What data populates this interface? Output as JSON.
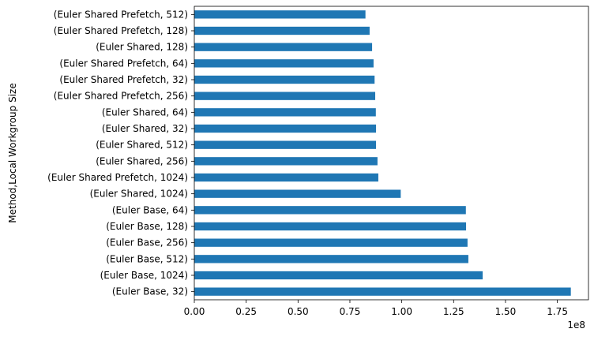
{
  "chart_data": {
    "type": "bar",
    "orientation": "horizontal",
    "ylabel": "Method,Local Workgroup Size",
    "xlabel": "",
    "x_offset_label": "1e8",
    "xlim": [
      0,
      190000000
    ],
    "xticks": [
      0,
      25000000,
      50000000,
      75000000,
      100000000,
      125000000,
      150000000,
      175000000
    ],
    "xtick_labels": [
      "0.00",
      "0.25",
      "0.50",
      "0.75",
      "1.00",
      "1.25",
      "1.50",
      "1.75"
    ],
    "grid": false,
    "bar_color": "#1f77b4",
    "categories": [
      "(Euler Shared Prefetch, 512)",
      "(Euler Shared Prefetch, 128)",
      "(Euler Shared, 128)",
      "(Euler Shared Prefetch, 64)",
      "(Euler Shared Prefetch, 32)",
      "(Euler Shared Prefetch, 256)",
      "(Euler Shared, 64)",
      "(Euler Shared, 32)",
      "(Euler Shared, 512)",
      "(Euler Shared, 256)",
      "(Euler Shared Prefetch, 1024)",
      "(Euler Shared, 1024)",
      "(Euler Base, 64)",
      "(Euler Base, 128)",
      "(Euler Base, 256)",
      "(Euler Base, 512)",
      "(Euler Base, 1024)",
      "(Euler Base, 32)"
    ],
    "values": [
      82500000,
      84500000,
      85700000,
      86400000,
      86900000,
      87200000,
      87500000,
      87600000,
      87600000,
      88300000,
      88700000,
      99500000,
      130900000,
      131000000,
      131700000,
      132100000,
      139000000,
      181500000
    ]
  }
}
